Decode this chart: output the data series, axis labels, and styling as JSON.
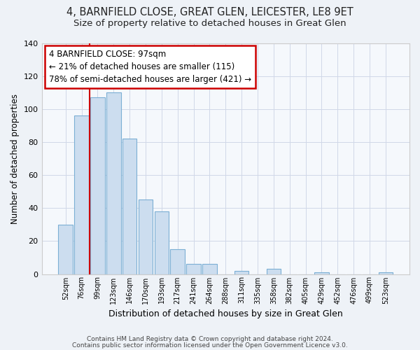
{
  "title": "4, BARNFIELD CLOSE, GREAT GLEN, LEICESTER, LE8 9ET",
  "subtitle": "Size of property relative to detached houses in Great Glen",
  "bar_labels": [
    "52sqm",
    "76sqm",
    "99sqm",
    "123sqm",
    "146sqm",
    "170sqm",
    "193sqm",
    "217sqm",
    "241sqm",
    "264sqm",
    "288sqm",
    "311sqm",
    "335sqm",
    "358sqm",
    "382sqm",
    "405sqm",
    "429sqm",
    "452sqm",
    "476sqm",
    "499sqm",
    "523sqm"
  ],
  "bar_values": [
    30,
    96,
    107,
    110,
    82,
    45,
    38,
    15,
    6,
    6,
    0,
    2,
    0,
    3,
    0,
    0,
    1,
    0,
    0,
    0,
    1
  ],
  "bar_color": "#ccddef",
  "bar_edge_color": "#7bafd4",
  "xlabel": "Distribution of detached houses by size in Great Glen",
  "ylabel": "Number of detached properties",
  "ylim": [
    0,
    140
  ],
  "yticks": [
    0,
    20,
    40,
    60,
    80,
    100,
    120,
    140
  ],
  "property_line_x": 1.5,
  "property_line_color": "#cc0000",
  "annotation_text": "4 BARNFIELD CLOSE: 97sqm\n← 21% of detached houses are smaller (115)\n78% of semi-detached houses are larger (421) →",
  "annotation_box_color": "#ffffff",
  "annotation_box_edge": "#cc0000",
  "footnote1": "Contains HM Land Registry data © Crown copyright and database right 2024.",
  "footnote2": "Contains public sector information licensed under the Open Government Licence v3.0.",
  "background_color": "#eef2f7",
  "plot_background": "#f5f8fc",
  "title_fontsize": 10.5,
  "subtitle_fontsize": 9.5
}
